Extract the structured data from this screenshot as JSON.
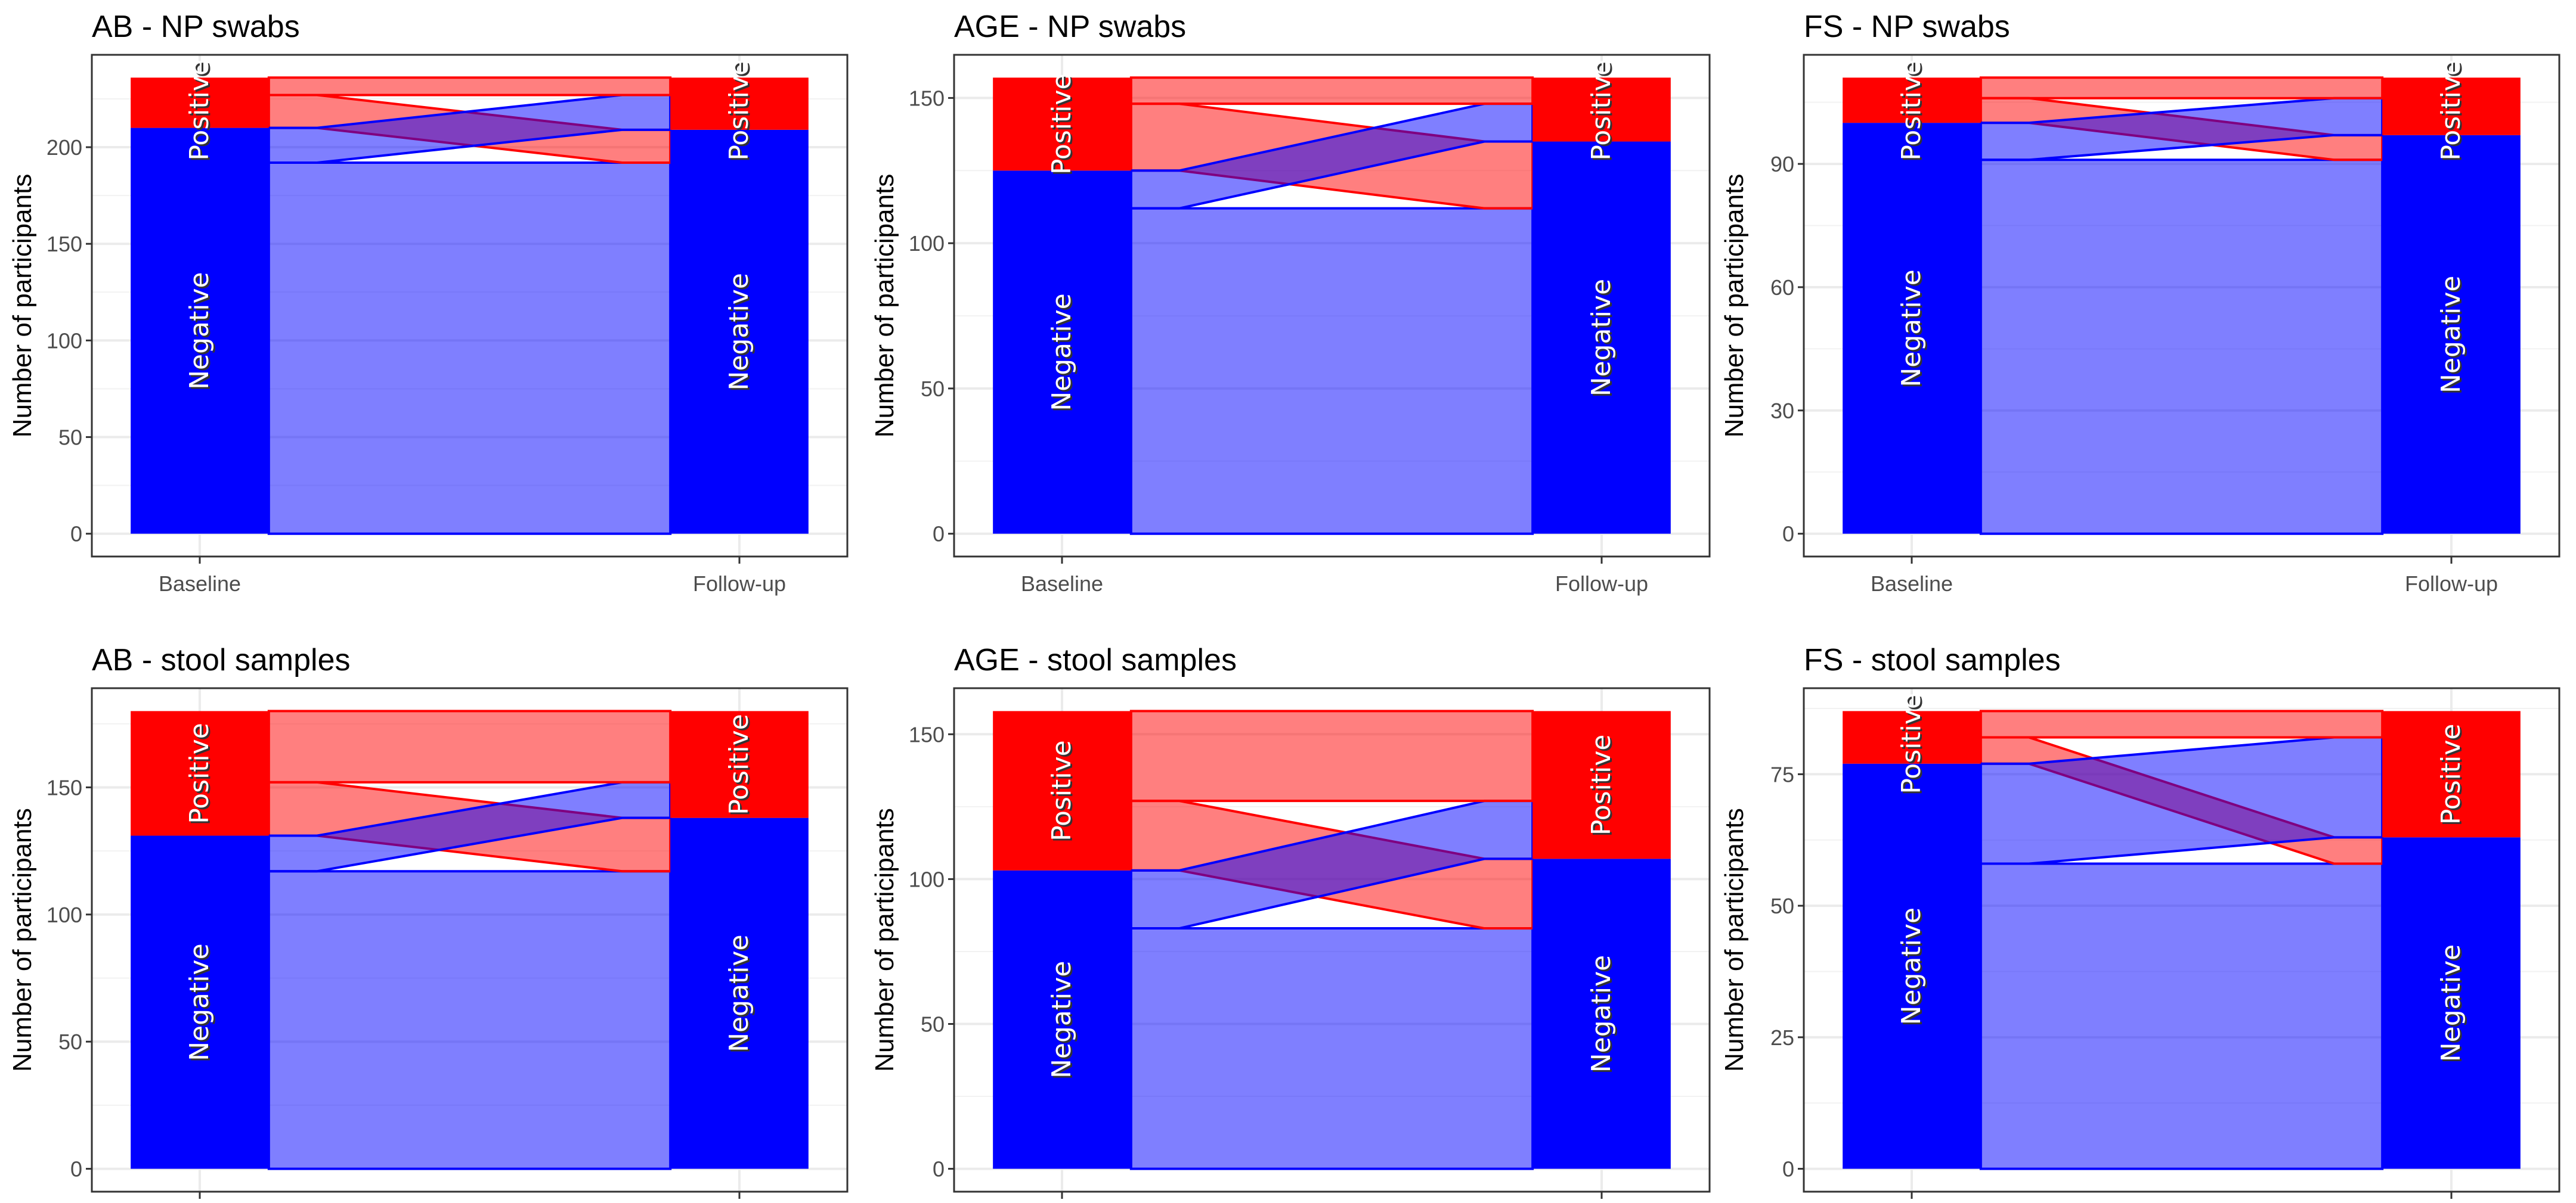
{
  "colors": {
    "Positive": "#FF0000",
    "Negative": "#0000FF"
  },
  "chart_data": [
    {
      "type": "alluvial",
      "title": "AB - NP swabs",
      "ylabel": "Number of participants",
      "categories": [
        "Baseline",
        "Follow-up"
      ],
      "show_x_labels": true,
      "strata": [
        "Negative",
        "Positive"
      ],
      "yticks": [
        "0",
        "50",
        "100",
        "150",
        "200"
      ],
      "ylim": [
        0,
        236
      ],
      "flows": {
        "Positive->Positive": 9,
        "Positive->Negative": 17,
        "Negative->Positive": 18,
        "Negative->Negative": 192
      },
      "totals": {
        "Baseline": {
          "Negative": 210,
          "Positive": 26
        },
        "Follow-up": {
          "Negative": 209,
          "Positive": 27
        }
      }
    },
    {
      "type": "alluvial",
      "title": "AGE - NP swabs",
      "ylabel": "Number of participants",
      "categories": [
        "Baseline",
        "Follow-up"
      ],
      "show_x_labels": true,
      "strata": [
        "Negative",
        "Positive"
      ],
      "yticks": [
        "0",
        "50",
        "100",
        "150"
      ],
      "ylim": [
        0,
        157
      ],
      "flows": {
        "Positive->Positive": 9,
        "Positive->Negative": 23,
        "Negative->Positive": 13,
        "Negative->Negative": 112
      },
      "totals": {
        "Baseline": {
          "Negative": 125,
          "Positive": 32
        },
        "Follow-up": {
          "Negative": 135,
          "Positive": 22
        }
      }
    },
    {
      "type": "alluvial",
      "title": "FS - NP swabs",
      "ylabel": "Number of participants",
      "categories": [
        "Baseline",
        "Follow-up"
      ],
      "show_x_labels": true,
      "strata": [
        "Negative",
        "Positive"
      ],
      "yticks": [
        "0",
        "30",
        "60",
        "90"
      ],
      "ylim": [
        0,
        111
      ],
      "flows": {
        "Positive->Positive": 5,
        "Positive->Negative": 6,
        "Negative->Positive": 9,
        "Negative->Negative": 91
      },
      "totals": {
        "Baseline": {
          "Negative": 100,
          "Positive": 11
        },
        "Follow-up": {
          "Negative": 97,
          "Positive": 14
        }
      }
    },
    {
      "type": "alluvial",
      "title": "AB - stool samples",
      "ylabel": "Number of participants",
      "categories": [
        "Baseline",
        "Follow-up"
      ],
      "show_x_labels": false,
      "strata": [
        "Negative",
        "Positive"
      ],
      "yticks": [
        "0",
        "50",
        "100",
        "150"
      ],
      "ylim": [
        0,
        180
      ],
      "flows": {
        "Positive->Positive": 28,
        "Positive->Negative": 21,
        "Negative->Positive": 14,
        "Negative->Negative": 117
      },
      "totals": {
        "Baseline": {
          "Negative": 131,
          "Positive": 49
        },
        "Follow-up": {
          "Negative": 138,
          "Positive": 42
        }
      }
    },
    {
      "type": "alluvial",
      "title": "AGE - stool samples",
      "ylabel": "Number of participants",
      "categories": [
        "Baseline",
        "Follow-up"
      ],
      "show_x_labels": false,
      "strata": [
        "Negative",
        "Positive"
      ],
      "yticks": [
        "0",
        "50",
        "100",
        "150"
      ],
      "ylim": [
        0,
        158
      ],
      "flows": {
        "Positive->Positive": 31,
        "Positive->Negative": 24,
        "Negative->Positive": 20,
        "Negative->Negative": 83
      },
      "totals": {
        "Baseline": {
          "Negative": 103,
          "Positive": 55
        },
        "Follow-up": {
          "Negative": 107,
          "Positive": 51
        }
      }
    },
    {
      "type": "alluvial",
      "title": "FS - stool samples",
      "ylabel": "Number of participants",
      "categories": [
        "Baseline",
        "Follow-up"
      ],
      "show_x_labels": false,
      "strata": [
        "Negative",
        "Positive"
      ],
      "yticks": [
        "0",
        "25",
        "50",
        "75"
      ],
      "ylim": [
        0,
        87
      ],
      "flows": {
        "Positive->Positive": 5,
        "Positive->Negative": 5,
        "Negative->Positive": 19,
        "Negative->Negative": 58
      },
      "totals": {
        "Baseline": {
          "Negative": 77,
          "Positive": 10
        },
        "Follow-up": {
          "Negative": 63,
          "Positive": 24
        }
      }
    }
  ]
}
